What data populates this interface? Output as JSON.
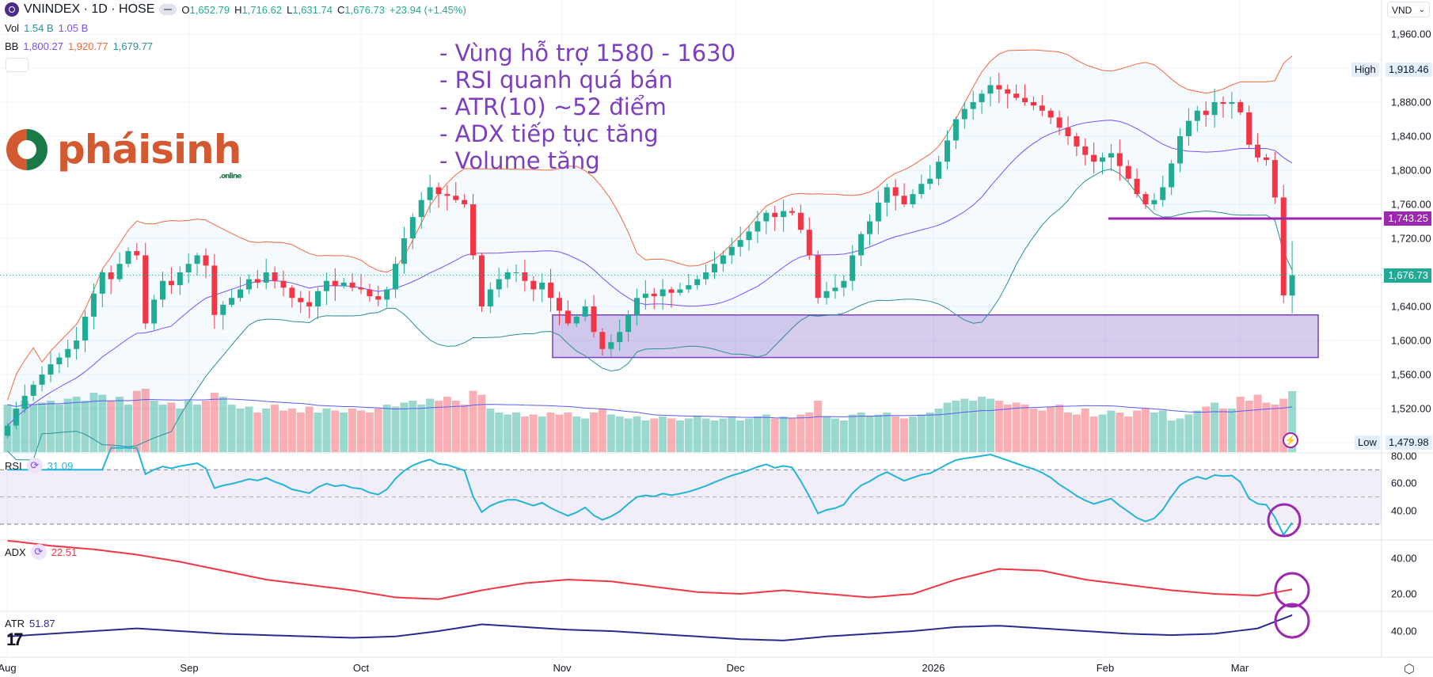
{
  "header": {
    "symbol": "VNINDEX · 1D · HOSE",
    "open_label": "O",
    "open": "1,652.79",
    "high_label": "H",
    "high": "1,716.62",
    "low_label": "L",
    "low": "1,631.74",
    "close_label": "C",
    "close": "1,676.73",
    "change": "+23.94 (+1.45%)",
    "vol_label": "Vol",
    "vol_value": "1.54 B",
    "vol_ma": "1.05 B",
    "bb_label": "BB",
    "bb_basis": "1,800.27",
    "bb_upper": "1,920.77",
    "bb_lower": "1,679.77"
  },
  "currency": "VND",
  "annotation": [
    "- Vùng hỗ trợ 1580 - 1630",
    "- RSI quanh quá bán",
    "- ATR(10) ~52 điểm",
    "- ADX tiếp tục tăng",
    "- Volume tăng"
  ],
  "logo": {
    "text": "pháisinh",
    "sub": ".online"
  },
  "price_axis": {
    "ticks": [
      "1,960.00",
      "1,880.00",
      "1,840.00",
      "1,800.00",
      "1,760.00",
      "1,720.00",
      "1,640.00",
      "1,600.00",
      "1,560.00",
      "1,520.00"
    ],
    "high_label": "High",
    "high_value": "1,918.46",
    "low_label": "Low",
    "low_value": "1,479.98",
    "level_value": "1,743.25",
    "last_value": "1,676.73"
  },
  "rsi": {
    "label": "RSI",
    "value": "31.09",
    "ticks": [
      "80.00",
      "60.00",
      "40.00"
    ]
  },
  "adx": {
    "label": "ADX",
    "value": "22.51",
    "ticks": [
      "40.00",
      "20.00"
    ]
  },
  "atr": {
    "label": "ATR",
    "value": "51.87",
    "ticks": [
      "40.00"
    ]
  },
  "time_axis": [
    "Aug",
    "Sep",
    "Oct",
    "Nov",
    "Dec",
    "2026",
    "Feb",
    "Mar"
  ],
  "colors": {
    "up": "#22ab94",
    "down": "#f23645",
    "bb_upper": "#f4683c",
    "bb_basis": "#7c4dff",
    "bb_lower": "#2c8f9a",
    "rsi": "#22b5d6",
    "adx": "#f23645",
    "atr": "#2a2a8f",
    "annotation": "#9c27b0"
  },
  "chart_data": {
    "type": "candlestick",
    "title": "VNINDEX · 1D · HOSE",
    "ylim": [
      1460,
      1980
    ],
    "support_zone": [
      1580,
      1630
    ],
    "resistance_level": 1743.25,
    "last": {
      "open": 1652.79,
      "high": 1716.62,
      "low": 1631.74,
      "close": 1676.73
    },
    "close": [
      1500,
      1520,
      1535,
      1548,
      1560,
      1572,
      1580,
      1590,
      1600,
      1628,
      1655,
      1680,
      1672,
      1690,
      1705,
      1700,
      1620,
      1648,
      1670,
      1665,
      1680,
      1690,
      1700,
      1688,
      1630,
      1642,
      1650,
      1660,
      1672,
      1668,
      1680,
      1670,
      1662,
      1650,
      1645,
      1640,
      1658,
      1670,
      1664,
      1668,
      1662,
      1660,
      1652,
      1648,
      1660,
      1690,
      1720,
      1745,
      1765,
      1780,
      1772,
      1770,
      1765,
      1760,
      1700,
      1640,
      1660,
      1672,
      1680,
      1680,
      1670,
      1660,
      1668,
      1650,
      1635,
      1620,
      1628,
      1640,
      1610,
      1590,
      1598,
      1610,
      1630,
      1650,
      1655,
      1652,
      1660,
      1656,
      1660,
      1665,
      1672,
      1680,
      1690,
      1700,
      1710,
      1718,
      1728,
      1740,
      1750,
      1745,
      1752,
      1750,
      1730,
      1700,
      1650,
      1658,
      1662,
      1670,
      1700,
      1725,
      1740,
      1762,
      1780,
      1770,
      1760,
      1772,
      1784,
      1790,
      1810,
      1835,
      1860,
      1872,
      1880,
      1890,
      1900,
      1895,
      1890,
      1885,
      1880,
      1876,
      1870,
      1862,
      1850,
      1840,
      1828,
      1818,
      1810,
      1815,
      1820,
      1805,
      1790,
      1772,
      1760,
      1765,
      1780,
      1808,
      1840,
      1858,
      1870,
      1865,
      1880,
      1878,
      1880,
      1868,
      1830,
      1815,
      1812,
      1768,
      1653,
      1677
    ],
    "volume_b": [
      1.2,
      1.1,
      1.3,
      1.2,
      1.25,
      1.3,
      1.2,
      1.35,
      1.4,
      1.3,
      1.5,
      1.45,
      1.3,
      1.4,
      1.2,
      1.55,
      1.6,
      1.3,
      1.2,
      1.25,
      1.1,
      1.3,
      1.2,
      1.3,
      1.5,
      1.4,
      1.2,
      1.1,
      1.15,
      1.0,
      1.1,
      1.2,
      1.05,
      1.1,
      1.0,
      1.15,
      1.0,
      1.1,
      1.05,
      1.0,
      1.1,
      1.05,
      1.0,
      1.1,
      1.2,
      1.15,
      1.25,
      1.3,
      1.2,
      1.35,
      1.3,
      1.4,
      1.3,
      1.2,
      1.55,
      1.45,
      1.1,
      1.0,
      0.95,
      1.0,
      0.9,
      0.95,
      0.9,
      1.0,
      0.95,
      1.0,
      0.9,
      0.85,
      1.0,
      1.1,
      0.95,
      0.9,
      0.85,
      0.9,
      0.8,
      0.85,
      0.9,
      0.85,
      0.8,
      0.85,
      0.9,
      0.85,
      0.8,
      0.85,
      0.9,
      0.8,
      0.85,
      0.9,
      0.95,
      0.85,
      0.9,
      0.85,
      0.95,
      1.0,
      1.3,
      0.9,
      0.85,
      0.8,
      0.95,
      1.0,
      0.9,
      0.95,
      1.0,
      0.9,
      0.85,
      0.9,
      0.95,
      1.0,
      1.1,
      1.25,
      1.3,
      1.35,
      1.3,
      1.4,
      1.35,
      1.3,
      1.2,
      1.25,
      1.2,
      1.1,
      1.05,
      1.15,
      1.2,
      1.0,
      0.95,
      1.1,
      0.9,
      0.95,
      1.05,
      1.0,
      0.9,
      1.05,
      1.1,
      1.0,
      1.05,
      0.8,
      0.85,
      0.95,
      1.05,
      1.15,
      1.25,
      1.1,
      1.1,
      1.4,
      1.3,
      1.45,
      1.25,
      1.2,
      1.35,
      1.54
    ],
    "adx_sampled_every_5": [
      50,
      47,
      45,
      42,
      38,
      33,
      28,
      25,
      22,
      18,
      17,
      22,
      26,
      28,
      27,
      24,
      21,
      20,
      22,
      20,
      18,
      20,
      28,
      34,
      33,
      28,
      25,
      22,
      20,
      19,
      22.51
    ],
    "atr_sampled_every_5": [
      36,
      38,
      40,
      42,
      40,
      38,
      37,
      36,
      35,
      36,
      40,
      45,
      43,
      41,
      40,
      38,
      36,
      34,
      33,
      36,
      38,
      40,
      43,
      44,
      42,
      40,
      38,
      37,
      38,
      42,
      51.87
    ],
    "rsi_bands": [
      70,
      50,
      30
    ]
  }
}
